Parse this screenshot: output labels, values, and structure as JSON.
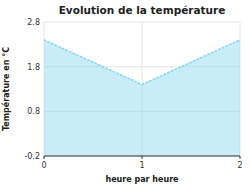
{
  "chart_data": {
    "type": "area",
    "title": "Evolution de la température",
    "xlabel": "heure par heure",
    "ylabel": "Température en °C",
    "x": [
      0,
      1,
      2
    ],
    "values": [
      2.4,
      1.4,
      2.4
    ],
    "xlim": [
      0,
      2
    ],
    "ylim": [
      -0.2,
      2.8
    ],
    "xticks": [
      0,
      1,
      2
    ],
    "yticks": [
      -0.2,
      0.8,
      1.8,
      2.8
    ],
    "color": "#88d8f0",
    "line_style": "dotted",
    "grid": true
  }
}
